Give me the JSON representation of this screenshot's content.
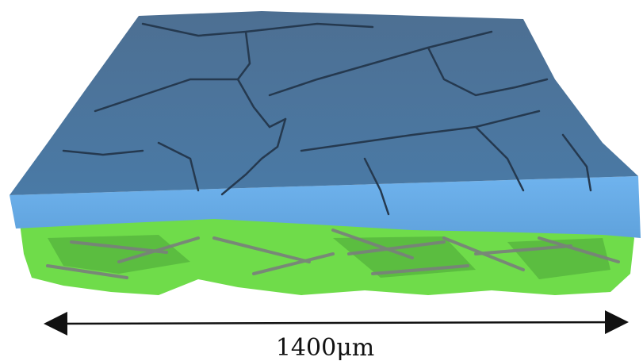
{
  "scale_bar": {
    "label": "1400μm"
  }
}
